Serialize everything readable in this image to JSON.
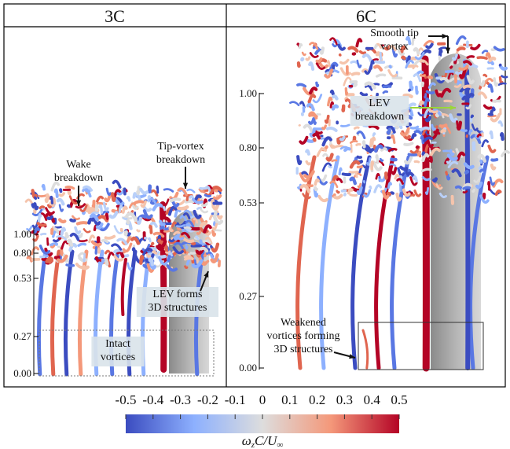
{
  "panels": [
    {
      "title": "3C",
      "axis_ticks": [
        "1.00",
        "0.80",
        "0.53",
        "0.27",
        "0.00"
      ],
      "annotations": [
        {
          "lines": [
            "Wake",
            "breakdown"
          ]
        },
        {
          "lines": [
            "Tip-vortex",
            "breakdown"
          ]
        },
        {
          "lines": [
            "LEV forms",
            "3D structures"
          ]
        },
        {
          "lines": [
            "Intact",
            "vortices"
          ]
        }
      ]
    },
    {
      "title": "6C",
      "axis_ticks": [
        "1.00",
        "0.80",
        "0.53",
        "0.27",
        "0.00"
      ],
      "annotations": [
        {
          "lines": [
            "Smooth tip",
            "vortex"
          ]
        },
        {
          "lines": [
            "LEV",
            "breakdown"
          ]
        },
        {
          "lines": [
            "Weakened",
            "vortices forming",
            "3D structures"
          ]
        }
      ]
    }
  ],
  "colorbar": {
    "lim": [
      -0.5,
      0.5
    ],
    "ticks": [
      -0.5,
      -0.4,
      -0.3,
      -0.2,
      -0.1,
      0,
      0.1,
      0.2,
      0.3,
      0.4,
      0.5
    ],
    "label": [
      "ω",
      "z",
      "C/U",
      "∞"
    ]
  }
}
